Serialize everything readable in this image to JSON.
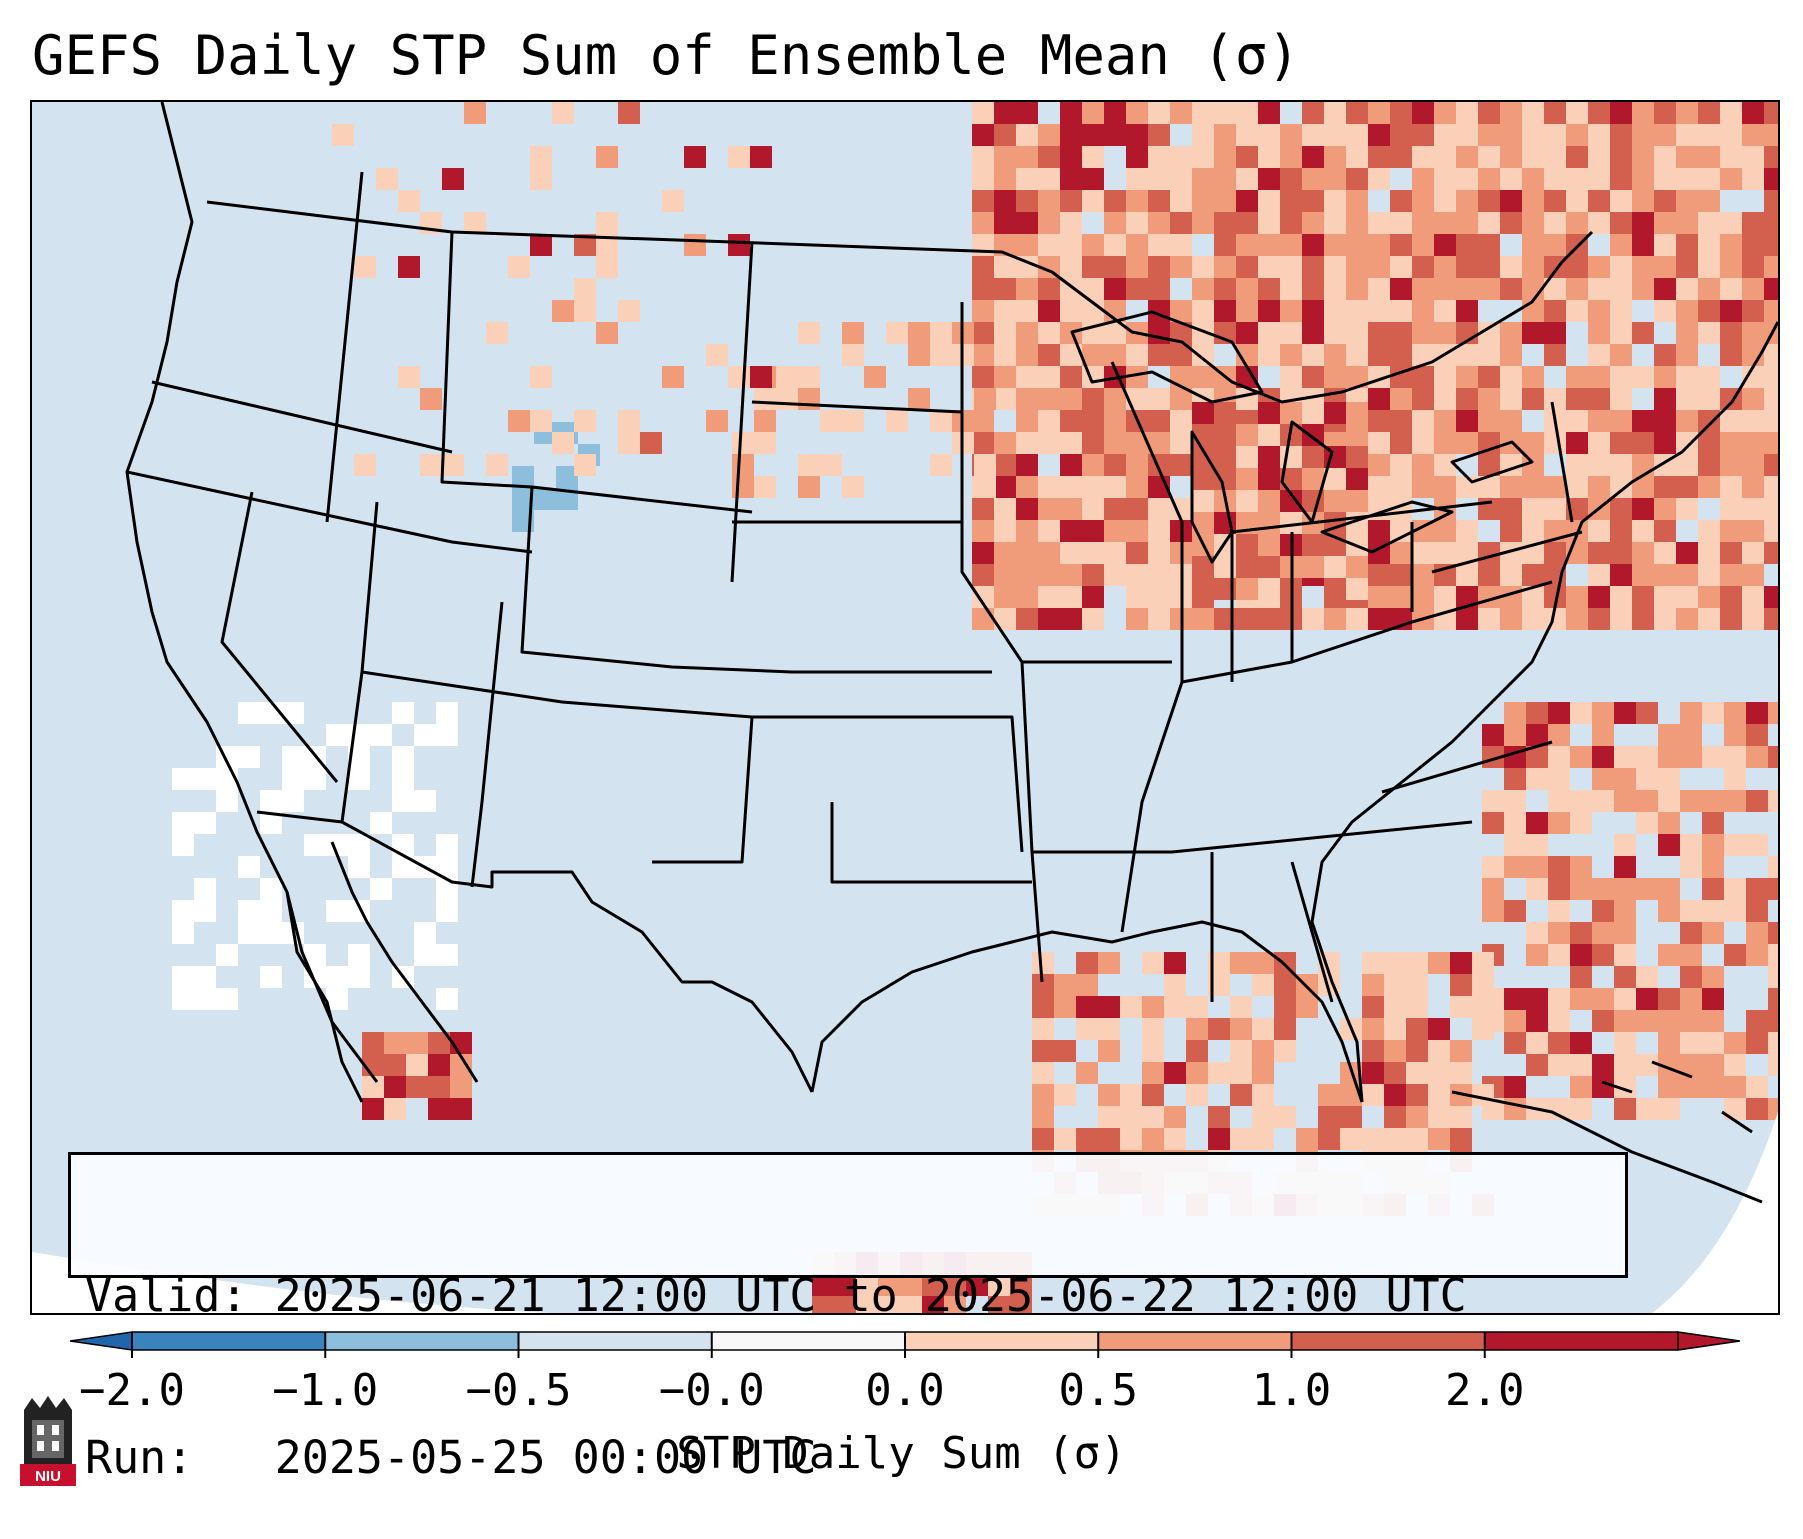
{
  "title": "GEFS Daily STP Sum of Ensemble Mean (σ)",
  "info": {
    "valid_label": "Valid:",
    "valid_value": "2025-06-21 12:00 UTC to 2025-06-22 12:00 UTC",
    "run_label": "Run:",
    "run_value": "2025-05-25 00:00 UTC"
  },
  "colorbar": {
    "label": "STP Daily Sum (σ)",
    "ticks": [
      "−2.0",
      "−1.0",
      "−0.5",
      "−0.0",
      "0.0",
      "0.5",
      "1.0",
      "2.0"
    ],
    "colors": [
      "#3b83bd",
      "#8dbfdd",
      "#d3e4f0",
      "#f7f7f7",
      "#fbd0b9",
      "#f09c7b",
      "#d35f4f",
      "#b2182b"
    ],
    "extend": "both"
  },
  "logo": {
    "text": "NIU",
    "icon": "university-logo-icon"
  },
  "map": {
    "ocean_color": "#d3e4f0",
    "line_color": "#000000"
  }
}
